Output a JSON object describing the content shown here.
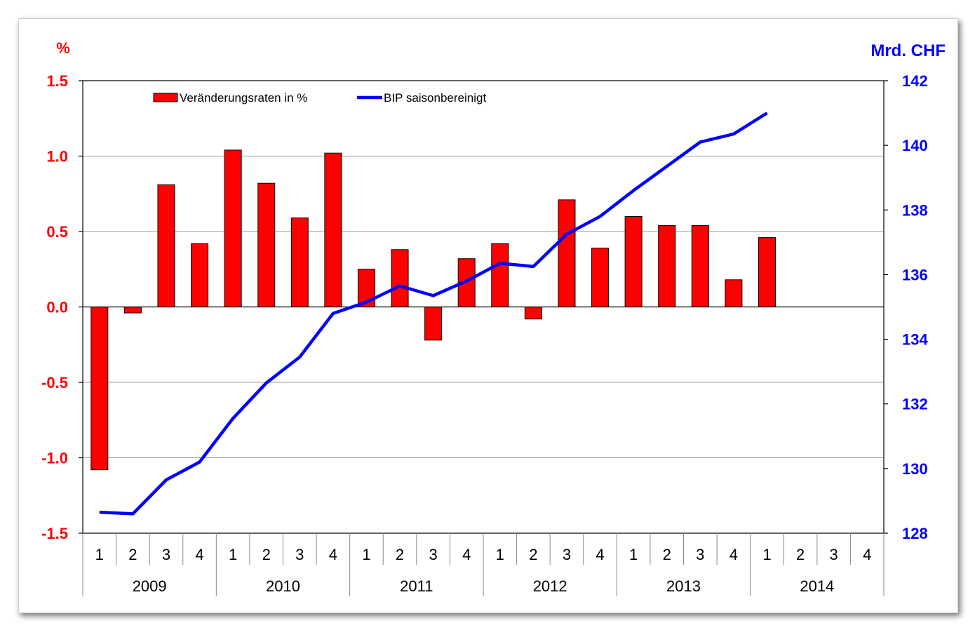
{
  "chart_data": {
    "type": "bar",
    "left_axis_unit": "%",
    "right_axis_unit": "Mrd. CHF",
    "left_ticks": [
      "1.5",
      "1.0",
      "0.5",
      "0.0",
      "-0.5",
      "-1.0",
      "-1.5"
    ],
    "right_ticks": [
      "142",
      "140",
      "138",
      "136",
      "134",
      "132",
      "130",
      "128"
    ],
    "ylim_left": [
      -1.5,
      1.5
    ],
    "ylim_right": [
      128,
      142
    ],
    "years": [
      "2009",
      "2010",
      "2011",
      "2012",
      "2013",
      "2014"
    ],
    "quarters": [
      "1",
      "2",
      "3",
      "4"
    ],
    "categories": [
      "2009 Q1",
      "2009 Q2",
      "2009 Q3",
      "2009 Q4",
      "2010 Q1",
      "2010 Q2",
      "2010 Q3",
      "2010 Q4",
      "2011 Q1",
      "2011 Q2",
      "2011 Q3",
      "2011 Q4",
      "2012 Q1",
      "2012 Q2",
      "2012 Q3",
      "2012 Q4",
      "2013 Q1",
      "2013 Q2",
      "2013 Q3",
      "2013 Q4",
      "2014 Q1",
      "2014 Q2",
      "2014 Q3",
      "2014 Q4"
    ],
    "series": [
      {
        "name": "Veränderungsraten in %",
        "kind": "bar",
        "axis": "left",
        "color": "#ff0000",
        "values": [
          -1.08,
          -0.04,
          0.81,
          0.42,
          1.04,
          0.82,
          0.59,
          1.02,
          0.25,
          0.38,
          -0.22,
          0.32,
          0.42,
          -0.08,
          0.71,
          0.39,
          0.6,
          0.54,
          0.54,
          0.18,
          0.46,
          null,
          null,
          null
        ]
      },
      {
        "name": "BIP saisonbereinigt",
        "kind": "line",
        "axis": "right",
        "color": "#0000ff",
        "values": [
          128.65,
          128.6,
          129.65,
          130.2,
          131.55,
          132.65,
          133.45,
          134.8,
          135.15,
          135.65,
          135.35,
          135.8,
          136.35,
          136.25,
          137.25,
          137.8,
          138.6,
          139.35,
          140.1,
          140.35,
          141.0,
          null,
          null,
          null
        ]
      }
    ],
    "grid": true,
    "legend_position": "top"
  }
}
